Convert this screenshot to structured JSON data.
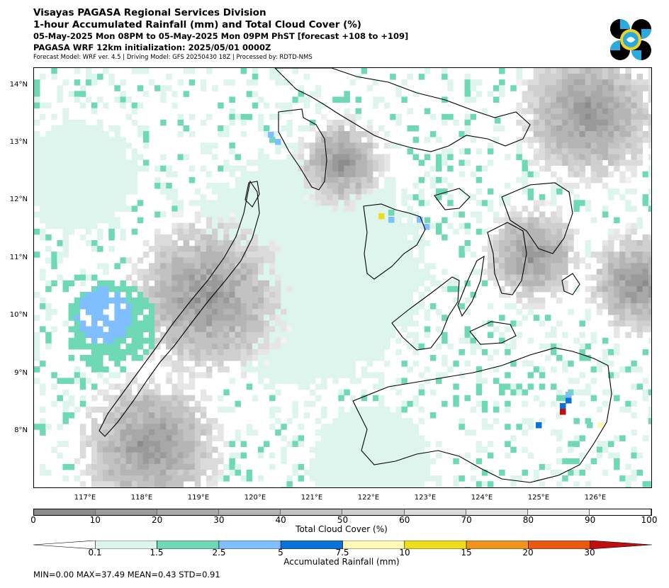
{
  "header": {
    "line1": "Visayas PAGASA Regional Services Division",
    "line2": "1-hour Accumulated Rainfall (mm) and Total Cloud Cover (%)",
    "line3": "05-May-2025 Mon 08PM to 05-May-2025 Mon 09PM PhST [forecast +108 to +109]",
    "line4": "PAGASA WRF 12km initialization: 2025/05/01 0000Z",
    "line5": "Forecast Model: WRF ver. 4.5 | Driving Model: GFS 20250430 18Z | Processed by: RDTD-NMS"
  },
  "map": {
    "lat_labels": [
      "14°N",
      "13°N",
      "12°N",
      "11°N",
      "10°N",
      "9°N",
      "8°N"
    ],
    "lon_labels": [
      "117°E",
      "118°E",
      "119°E",
      "120°E",
      "121°E",
      "122°E",
      "123°E",
      "124°E",
      "125°E",
      "126°E"
    ],
    "lat_range": [
      7.0,
      14.3
    ],
    "lon_range": [
      115.9,
      126.9
    ],
    "land_color": "#ffffff",
    "coast_color": "#000000"
  },
  "cloud_legend": {
    "title": "Total Cloud Cover (%)",
    "ticks": [
      "0",
      "10",
      "20",
      "30",
      "40",
      "50",
      "60",
      "70",
      "80",
      "90",
      "100"
    ],
    "colors": [
      "#8c8c8c",
      "#9a9a9a",
      "#a8a8a8",
      "#b5b5b5",
      "#c2c2c2",
      "#cfcfcf",
      "#dbdbdb",
      "#e6e6e6",
      "#f1f1f1",
      "#ffffff"
    ]
  },
  "rain_legend": {
    "title": "Accumulated Rainfall (mm)",
    "ticks": [
      "0.1",
      "1.5",
      "2.5",
      "5",
      "7.5",
      "10",
      "15",
      "20",
      "30"
    ],
    "colors": [
      "#ffffff",
      "#def5ee",
      "#6fd8b4",
      "#7fbfff",
      "#0a72d8",
      "#fff9b8",
      "#f0dc1e",
      "#f09420",
      "#e85a14",
      "#bf1010"
    ]
  },
  "stats": {
    "text": "MIN=0.00   MAX=37.49   MEAN=0.43   STD=0.91"
  }
}
